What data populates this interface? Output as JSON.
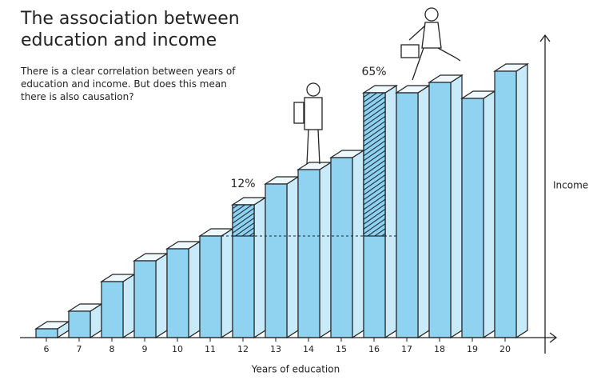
{
  "chart_data": {
    "type": "bar3d",
    "title": "The association between education and income",
    "subtitle": "There is a clear correlation between years of education and income. But does this mean there is also causation?",
    "x_label": "Years of education",
    "y_label": "Income",
    "categories": [
      "6",
      "7",
      "8",
      "9",
      "10",
      "11",
      "12",
      "13",
      "14",
      "15",
      "16",
      "17",
      "18",
      "19",
      "20"
    ],
    "values": [
      11,
      33,
      70,
      96,
      111,
      127,
      166,
      192,
      210,
      225,
      306,
      306,
      319,
      299,
      333
    ],
    "ylim": [
      0,
      338
    ],
    "color": "#8fd3f0",
    "reference_index": 5,
    "hatched_indices": [
      6,
      10
    ],
    "annotations": [
      {
        "text": "12%",
        "index": 6
      },
      {
        "text": "65%",
        "index": 10
      }
    ]
  }
}
